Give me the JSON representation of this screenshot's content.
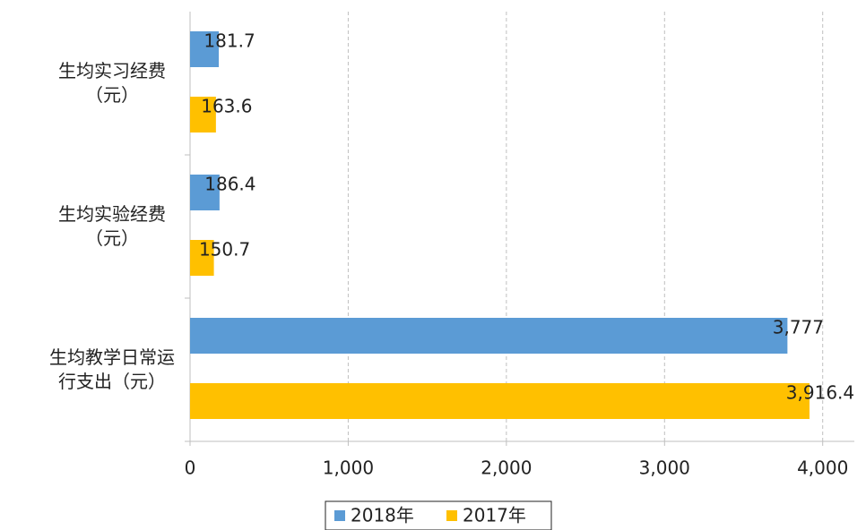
{
  "chart_data": {
    "type": "hbar",
    "categories": [
      "生均实习经费（元）",
      "生均实验经费（元）",
      "生均教学日常运行支出（元）"
    ],
    "series": [
      {
        "name": "2018年",
        "color": "#5b9bd5",
        "values": [
          181.7,
          186.4,
          3777
        ],
        "value_labels": [
          "181.7",
          "186.4",
          "3,777"
        ]
      },
      {
        "name": "2017年",
        "color": "#ffc000",
        "values": [
          163.6,
          150.7,
          3916.4
        ],
        "value_labels": [
          "163.6",
          "150.7",
          "3,916.4"
        ]
      }
    ],
    "xlim": [
      0,
      4200
    ],
    "xticks": [
      0,
      {
        "value": 1000,
        "label": "1,000"
      },
      {
        "value": 2000,
        "label": "2,000"
      },
      {
        "value": 3000,
        "label": "3,000"
      },
      {
        "value": 4000,
        "label": "4,000"
      }
    ],
    "grid": true
  }
}
